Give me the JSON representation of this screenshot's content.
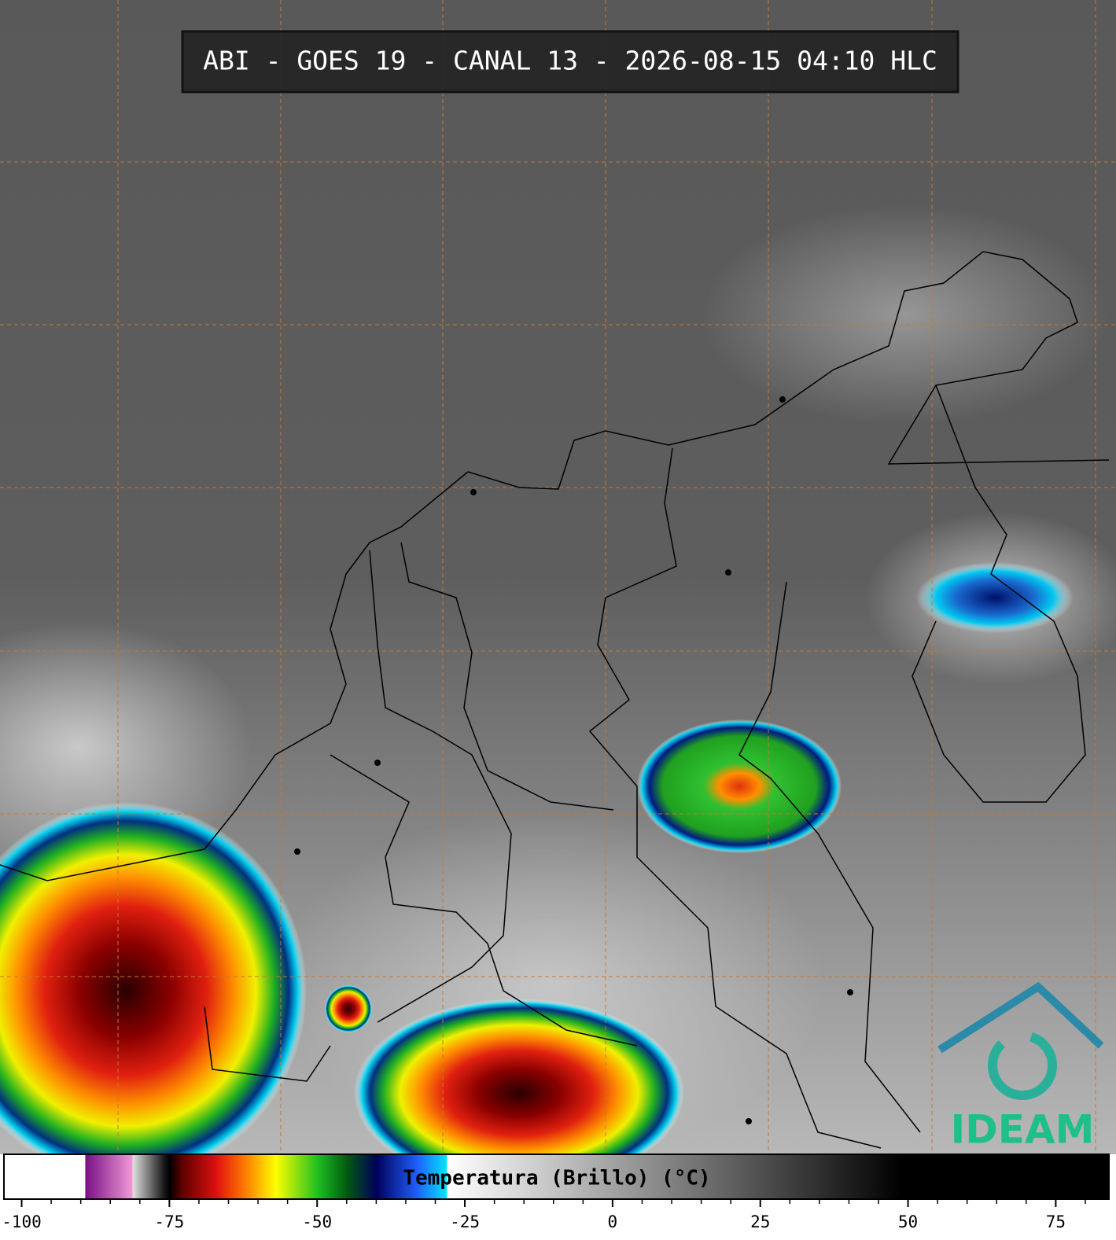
{
  "title": "ABI - GOES 19 - CANAL 13 - 2026-08-15 04:10 HLC",
  "logo": "IDEAM",
  "colorbar": {
    "label": "Temperatura (Brillo) (°C)",
    "lim": [
      -103,
      84
    ],
    "ticks": [
      -100,
      -75,
      -50,
      -25,
      0,
      25,
      50,
      75
    ],
    "stops": [
      {
        "value": -103,
        "color": "#ffffff"
      },
      {
        "value": -89.3,
        "color": "#ffffff"
      },
      {
        "value": -89.2,
        "color": "#7a0f84"
      },
      {
        "value": -81.3,
        "color": "#f09ad8"
      },
      {
        "value": -81.2,
        "color": "#e0e0e0"
      },
      {
        "value": -76,
        "color": "#1a1a1a"
      },
      {
        "value": -75,
        "color": "#000000"
      },
      {
        "value": -73,
        "color": "#5a0000"
      },
      {
        "value": -67,
        "color": "#e01010"
      },
      {
        "value": -62,
        "color": "#ff8000"
      },
      {
        "value": -57,
        "color": "#ffff00"
      },
      {
        "value": -50,
        "color": "#20c020"
      },
      {
        "value": -45,
        "color": "#005a10"
      },
      {
        "value": -40,
        "color": "#00005a"
      },
      {
        "value": -33,
        "color": "#2060ff"
      },
      {
        "value": -28.1,
        "color": "#00e8ff"
      },
      {
        "value": -28,
        "color": "#ffffff"
      },
      {
        "value": 49,
        "color": "#000000"
      },
      {
        "value": 84,
        "color": "#000000"
      }
    ]
  }
}
